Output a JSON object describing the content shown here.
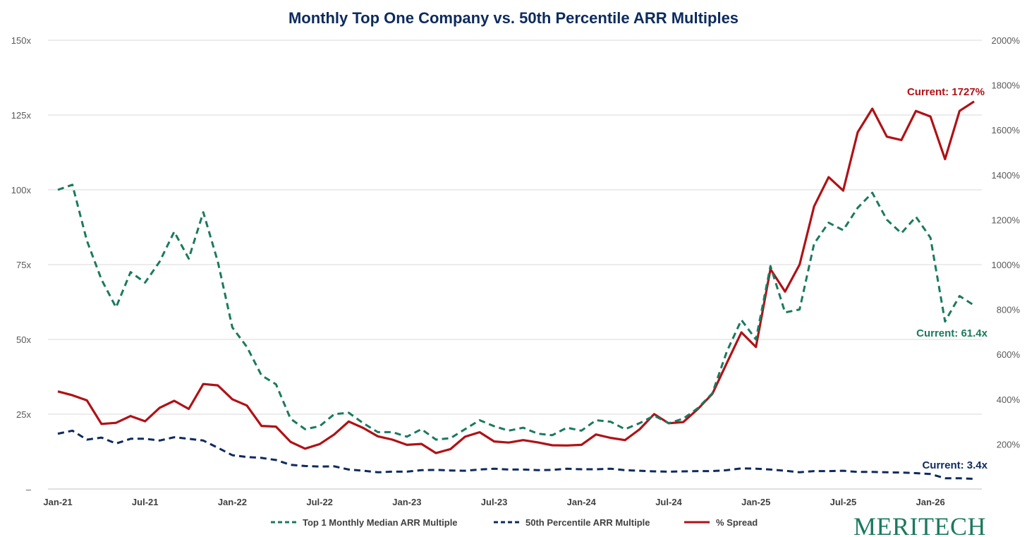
{
  "chart_data": {
    "type": "line",
    "title": "Monthly Top One Company vs. 50th Percentile ARR Multiples",
    "x_tick_labels": [
      "Jan-21",
      "Jul-21",
      "Jan-22",
      "Jul-22",
      "Jan-23",
      "Jul-23",
      "Jan-24",
      "Jul-24",
      "Jan-25",
      "Jul-25",
      "Jan-26"
    ],
    "y_left": {
      "ylim": [
        0,
        150
      ],
      "ticks": [
        0,
        25,
        50,
        75,
        100,
        125,
        150
      ],
      "tick_labels": [
        "–",
        "25x",
        "50x",
        "75x",
        "100x",
        "125x",
        "150x"
      ]
    },
    "y_right": {
      "ylim": [
        0,
        2000
      ],
      "ticks": [
        200,
        400,
        600,
        800,
        1000,
        1200,
        1400,
        1600,
        1800,
        2000
      ],
      "tick_labels": [
        "200%",
        "400%",
        "600%",
        "800%",
        "1000%",
        "1200%",
        "1400%",
        "1600%",
        "1800%",
        "2000%"
      ]
    },
    "grid": true,
    "legend_position": "bottom",
    "series": [
      {
        "name": "Top 1 Monthly Median ARR Multiple",
        "axis": "left",
        "style": "dashed",
        "color": "#1a7a5e",
        "values": [
          100,
          101.7,
          83,
          70,
          60.7,
          72.5,
          69,
          76,
          86,
          77,
          92.5,
          76,
          54,
          47.5,
          38,
          35,
          23.5,
          20,
          21,
          25,
          25.5,
          22,
          19,
          19,
          17.5,
          20,
          16.5,
          17,
          20,
          23,
          21,
          19.5,
          20.5,
          18.5,
          18,
          20.5,
          19.5,
          23,
          22.5,
          20,
          22,
          24.5,
          22,
          23.5,
          27,
          32,
          46,
          56.5,
          50,
          74.5,
          59,
          60,
          82,
          89,
          86.5,
          94,
          99,
          90,
          85.5,
          91,
          84,
          56,
          64.5,
          61.4
        ]
      },
      {
        "name": "50th Percentile ARR Multiple",
        "axis": "left",
        "style": "dashed",
        "color": "#0d2b5e",
        "values": [
          18.5,
          19.5,
          16.5,
          17.2,
          15.2,
          16.8,
          16.8,
          16.2,
          17.3,
          16.8,
          16.2,
          13.8,
          11.3,
          10.7,
          10.4,
          9.7,
          8.1,
          7.7,
          7.5,
          7.6,
          6.5,
          6.1,
          5.6,
          5.8,
          5.8,
          6.3,
          6.4,
          6.2,
          6.1,
          6.5,
          6.8,
          6.5,
          6.5,
          6.3,
          6.4,
          6.8,
          6.6,
          6.6,
          6.8,
          6.3,
          6.1,
          5.9,
          5.8,
          5.9,
          6.0,
          6.0,
          6.3,
          6.9,
          6.8,
          6.5,
          6.1,
          5.6,
          6.0,
          6.0,
          6.1,
          5.7,
          5.7,
          5.6,
          5.5,
          5.3,
          5.0,
          3.6,
          3.6,
          3.4
        ]
      },
      {
        "name": "% Spread",
        "axis": "right",
        "style": "solid",
        "color": "#b01116",
        "values": [
          435,
          418,
          395,
          290,
          295,
          325,
          302,
          362,
          393,
          357,
          468,
          462,
          400,
          372,
          281,
          278,
          210,
          180,
          200,
          243,
          301,
          272,
          235,
          220,
          197,
          201,
          160,
          178,
          233,
          253,
          212,
          207,
          218,
          208,
          195,
          194,
          197,
          243,
          228,
          218,
          266,
          334,
          293,
          298,
          356,
          424,
          562,
          698,
          633,
          980,
          880,
          1000,
          1260,
          1390,
          1330,
          1590,
          1695,
          1570,
          1555,
          1685,
          1660,
          1470,
          1685,
          1727
        ]
      }
    ],
    "annotations": [
      {
        "text": "Current: 1727%",
        "series": "% Spread",
        "color": "#b01116"
      },
      {
        "text": "Current: 61.4x",
        "series": "Top 1 Monthly Median ARR Multiple",
        "color": "#1a7a5e"
      },
      {
        "text": "Current: 3.4x",
        "series": "50th Percentile ARR Multiple",
        "color": "#0d2b5e"
      }
    ]
  },
  "brand": {
    "name": "MERITECH"
  },
  "colors": {
    "title": "#0d2b5e",
    "grid": "#d9d9d9",
    "axis": "#bfbfbf",
    "brand": "#1a7a5e"
  }
}
